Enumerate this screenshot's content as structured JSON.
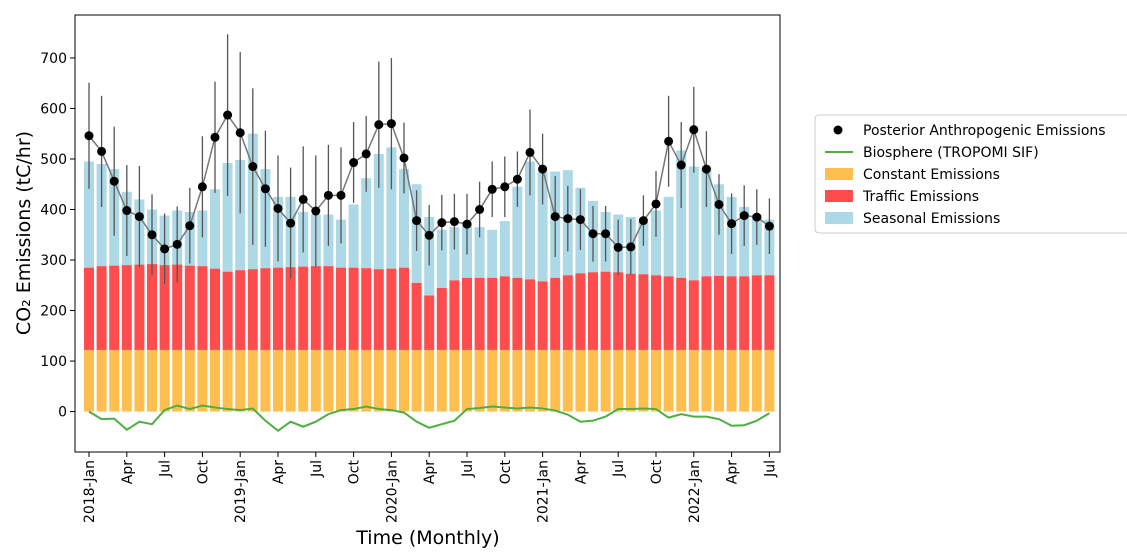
{
  "chart_data": {
    "type": "bar",
    "x_label": "Time (Monthly)",
    "y_label": "CO₂ Emissions (tC/hr)",
    "categories": [
      "2018-Jan",
      null,
      null,
      "Apr",
      null,
      null,
      "Jul",
      null,
      null,
      "Oct",
      null,
      null,
      "2019-Jan",
      null,
      null,
      "Apr",
      null,
      null,
      "Jul",
      null,
      null,
      "Oct",
      null,
      null,
      "2020-Jan",
      null,
      null,
      "Apr",
      null,
      null,
      "Jul",
      null,
      null,
      "Oct",
      null,
      null,
      "2021-Jan",
      null,
      null,
      "Apr",
      null,
      null,
      "Jul",
      null,
      null,
      "Oct",
      null,
      null,
      "2022-Jan",
      null,
      null,
      "Apr",
      null,
      null,
      "Jul"
    ],
    "ylim": [
      -80,
      785
    ],
    "yticks": [
      0,
      100,
      200,
      300,
      400,
      500,
      600,
      700
    ],
    "series": [
      {
        "name": "Posterior Anthropogenic Emissions",
        "type": "scatter",
        "color": "#000000",
        "values": [
          546,
          515,
          456,
          398,
          386,
          350,
          322,
          331,
          368,
          445,
          543,
          587,
          552,
          485,
          441,
          402,
          373,
          420,
          397,
          428,
          428,
          493,
          510,
          568,
          570,
          502,
          378,
          349,
          374,
          376,
          371,
          400,
          440,
          445,
          460,
          513,
          480,
          386,
          382,
          380,
          352,
          352,
          325,
          326,
          378,
          411,
          535,
          488,
          558,
          480,
          410,
          372,
          388,
          385,
          367
        ],
        "errors": [
          105,
          110,
          108,
          90,
          100,
          80,
          70,
          75,
          75,
          100,
          110,
          160,
          160,
          155,
          115,
          105,
          110,
          105,
          110,
          100,
          95,
          80,
          75,
          125,
          130,
          70,
          60,
          60,
          55,
          55,
          60,
          55,
          55,
          60,
          55,
          85,
          70,
          80,
          65,
          60,
          55,
          55,
          55,
          55,
          50,
          65,
          90,
          85,
          85,
          75,
          60,
          60,
          60,
          55,
          55
        ]
      },
      {
        "name": "Biosphere (TROPOMI SIF)",
        "type": "line",
        "color": "#4caf3f",
        "values": [
          0,
          -15,
          -14,
          -36,
          -20,
          -25,
          3,
          12,
          5,
          12,
          8,
          5,
          3,
          6,
          -18,
          -38,
          -20,
          -30,
          -20,
          -5,
          3,
          5,
          10,
          5,
          3,
          -2,
          -20,
          -32,
          -25,
          -18,
          5,
          7,
          10,
          8,
          6,
          8,
          6,
          2,
          -6,
          -20,
          -18,
          -10,
          5,
          5,
          6,
          5,
          -12,
          -5,
          -10,
          -10,
          -15,
          -28,
          -27,
          -18,
          -3
        ]
      },
      {
        "name": "Constant Emissions",
        "type": "bar",
        "color": "#ffbf4f",
        "values": [
          122,
          122,
          122,
          122,
          122,
          122,
          122,
          122,
          122,
          122,
          122,
          122,
          122,
          122,
          122,
          122,
          122,
          122,
          122,
          122,
          122,
          122,
          122,
          122,
          122,
          122,
          122,
          122,
          122,
          122,
          122,
          122,
          122,
          122,
          122,
          122,
          122,
          122,
          122,
          122,
          122,
          122,
          122,
          122,
          122,
          122,
          122,
          122,
          122,
          122,
          122,
          122,
          122,
          122,
          122
        ]
      },
      {
        "name": "Traffic Emissions",
        "type": "bar",
        "color": "#ff4d4d",
        "values": [
          163,
          166,
          167,
          168,
          169,
          170,
          168,
          169,
          167,
          166,
          161,
          155,
          158,
          160,
          162,
          163,
          164,
          165,
          166,
          166,
          163,
          163,
          162,
          160,
          161,
          163,
          133,
          108,
          123,
          138,
          143,
          143,
          143,
          146,
          143,
          140,
          136,
          143,
          148,
          152,
          154,
          155,
          154,
          151,
          150,
          148,
          146,
          143,
          138,
          146,
          147,
          146,
          146,
          148,
          148
        ]
      },
      {
        "name": "Seasonal Emissions",
        "type": "bar",
        "color": "#add8e6",
        "values": [
          210,
          202,
          191,
          145,
          129,
          108,
          98,
          107,
          106,
          110,
          157,
          215,
          218,
          268,
          196,
          140,
          139,
          108,
          102,
          102,
          95,
          125,
          178,
          228,
          240,
          195,
          195,
          155,
          115,
          105,
          110,
          100,
          95,
          109,
          180,
          233,
          217,
          210,
          208,
          169,
          141,
          118,
          114,
          112,
          103,
          128,
          157,
          252,
          225,
          214,
          181,
          157,
          137,
          120,
          110
        ]
      }
    ]
  }
}
